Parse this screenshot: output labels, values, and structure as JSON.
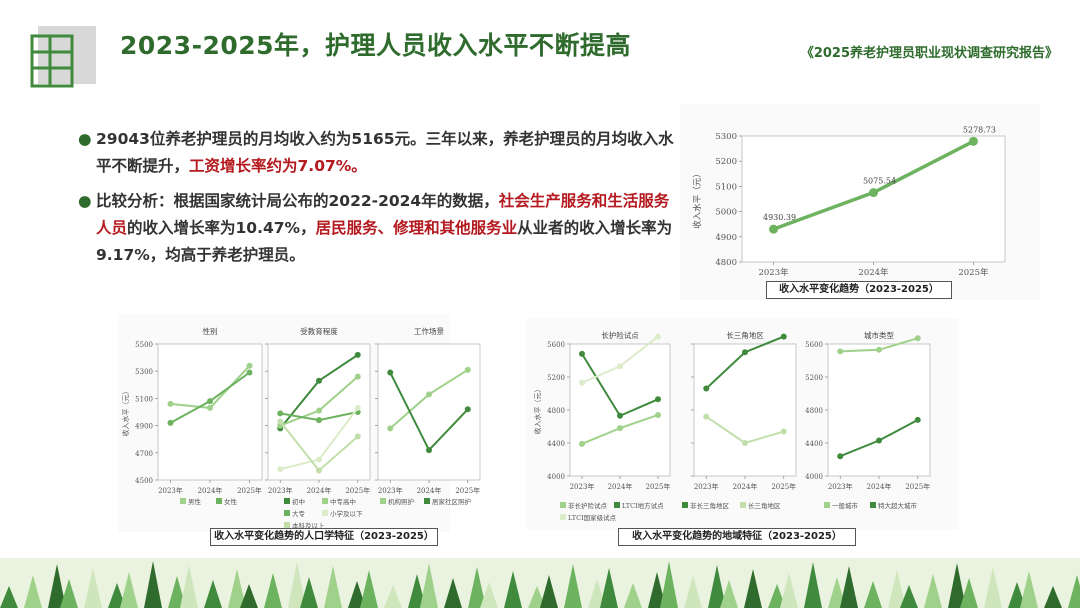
{
  "header": {
    "title": "2023-2025年，护理人员收入水平不断提高",
    "report": "《2025养老护理员职业现状调查研究报告》"
  },
  "bullets": [
    {
      "parts": [
        {
          "t": "29043位养老护理员的月均收入约为5165元。三年以来，养老护理员的月均收入水平不断提升，",
          "hl": false
        },
        {
          "t": "工资增长率约为7.07%。",
          "hl": true
        }
      ]
    },
    {
      "parts": [
        {
          "t": "比较分析：根据国家统计局公布的2022-2024年的数据，",
          "hl": false
        },
        {
          "t": "社会生产服务和生活服务人员",
          "hl": true
        },
        {
          "t": "的收入增长率为10.47%，",
          "hl": false
        },
        {
          "t": "居民服务、修理和其他服务业",
          "hl": true
        },
        {
          "t": "从业者的收入增长率为9.17%，均高于养老护理员。",
          "hl": false
        }
      ]
    }
  ],
  "colors": {
    "dark": "#3f8a3c",
    "mid": "#6db35f",
    "light": "#9fd18a",
    "pale": "#cfe6bd",
    "title": "#2e6b2c",
    "red": "#b3191f"
  },
  "captions": {
    "main": "收入水平变化趋势（2023-2025）",
    "demographic": "收入水平变化趋势的人口学特征（2023-2025）",
    "regional": "收入水平变化趋势的地域特征（2023-2025）"
  },
  "chart_data": [
    {
      "id": "main",
      "type": "line",
      "title": "",
      "xlabel": "",
      "ylabel": "收入水平（元）",
      "x": [
        "2023年",
        "2024年",
        "2025年"
      ],
      "ylim": [
        4800,
        5300
      ],
      "yticks": [
        4800,
        4900,
        5000,
        5100,
        5200,
        5300
      ],
      "series": [
        {
          "values": [
            4930.39,
            5075.54,
            5278.73
          ],
          "color": "#6db35f",
          "labels": [
            "4930.39",
            "5075.54",
            "5278.73"
          ]
        }
      ]
    },
    {
      "id": "gender",
      "type": "line",
      "title": "性别",
      "ylabel": "收入水平（元）",
      "x": [
        "2023年",
        "2024年",
        "2025年"
      ],
      "ylim": [
        4500,
        5500
      ],
      "yticks": [
        4500,
        4700,
        4900,
        5100,
        5300,
        5500
      ],
      "series": [
        {
          "name": "男性",
          "values": [
            5060,
            5030,
            5340
          ],
          "color": "#9fd18a"
        },
        {
          "name": "女性",
          "values": [
            4920,
            5080,
            5290
          ],
          "color": "#6db35f"
        }
      ]
    },
    {
      "id": "education",
      "type": "line",
      "title": "受教育程度",
      "ylabel": "",
      "x": [
        "2023年",
        "2024年",
        "2025年"
      ],
      "ylim": [
        4500,
        5500
      ],
      "yticks": [
        4500,
        4700,
        4900,
        5100,
        5300,
        5500
      ],
      "series": [
        {
          "name": "初中",
          "values": [
            4880,
            5230,
            5420
          ],
          "color": "#3f8a3c"
        },
        {
          "name": "中专高中",
          "values": [
            4900,
            5010,
            5260
          ],
          "color": "#9fd18a"
        },
        {
          "name": "大专",
          "values": [
            4990,
            4940,
            5000
          ],
          "color": "#6db35f"
        },
        {
          "name": "小学及以下",
          "values": [
            4580,
            4650,
            5030
          ],
          "color": "#dcecc9"
        },
        {
          "name": "本科及以上",
          "values": [
            4930,
            4570,
            4820
          ],
          "color": "#c2dfab"
        }
      ]
    },
    {
      "id": "workplace",
      "type": "line",
      "title": "工作场景",
      "ylabel": "",
      "x": [
        "2023年",
        "2024年",
        "2025年"
      ],
      "ylim": [
        4500,
        5500
      ],
      "yticks": [
        4500,
        4700,
        4900,
        5100,
        5300,
        5500
      ],
      "series": [
        {
          "name": "机构照护",
          "values": [
            4880,
            5130,
            5310
          ],
          "color": "#9fd18a"
        },
        {
          "name": "居家社区照护",
          "values": [
            5290,
            4720,
            5020
          ],
          "color": "#3f8a3c"
        }
      ]
    },
    {
      "id": "ltc",
      "type": "line",
      "title": "长护险试点",
      "ylabel": "收入水平（元）",
      "x": [
        "2023年",
        "2024年",
        "2025年"
      ],
      "ylim": [
        4000,
        5600
      ],
      "yticks": [
        4000,
        4400,
        4800,
        5200,
        5600
      ],
      "series": [
        {
          "name": "非长护险试点",
          "values": [
            4390,
            4580,
            4740
          ],
          "color": "#9fd18a"
        },
        {
          "name": "LTCI地方试点",
          "values": [
            5480,
            4730,
            4930
          ],
          "color": "#3f8a3c"
        },
        {
          "name": "LTCI国家级试点",
          "values": [
            5130,
            5330,
            5690
          ],
          "color": "#dcecc9"
        }
      ]
    },
    {
      "id": "yrd",
      "type": "line",
      "title": "长三角地区",
      "ylabel": "",
      "x": [
        "2023年",
        "2024年",
        "2025年"
      ],
      "ylim": [
        4000,
        5600
      ],
      "yticks": [
        4000,
        4400,
        4800,
        5200,
        5600
      ],
      "series": [
        {
          "name": "非长三角地区",
          "values": [
            5060,
            5500,
            5690
          ],
          "color": "#3f8a3c"
        },
        {
          "name": "长三角地区",
          "values": [
            4720,
            4400,
            4540
          ],
          "color": "#c2dfab"
        }
      ]
    },
    {
      "id": "city",
      "type": "line",
      "title": "城市类型",
      "ylabel": "",
      "x": [
        "2023年",
        "2024年",
        "2025年"
      ],
      "ylim": [
        4000,
        5600
      ],
      "yticks": [
        4000,
        4400,
        4800,
        5200,
        5600
      ],
      "series": [
        {
          "name": "一般城市",
          "values": [
            5510,
            5530,
            5670
          ],
          "color": "#9fd18a"
        },
        {
          "name": "特大超大城市",
          "values": [
            4240,
            4430,
            4680
          ],
          "color": "#3f8a3c"
        }
      ]
    }
  ]
}
